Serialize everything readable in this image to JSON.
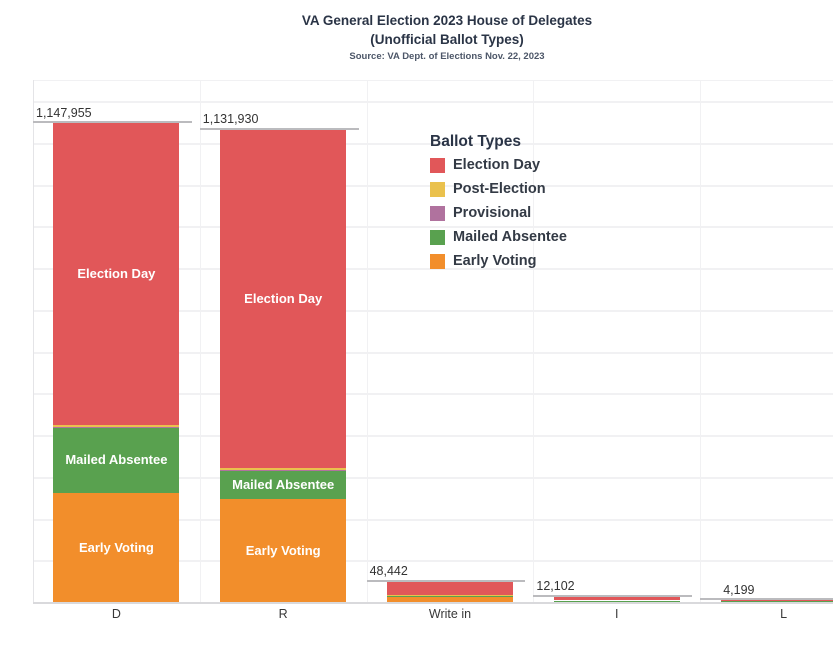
{
  "header": {
    "title": "VA General Election 2023 House of Delegates",
    "subtitle": "(Unofficial Ballot Types)",
    "source": "Source: VA Dept. of Elections Nov. 22, 2023"
  },
  "legend": {
    "title": "Ballot Types"
  },
  "chart_data": {
    "type": "bar",
    "stacked": true,
    "title": "VA General Election 2023 House of Delegates",
    "subtitle": "(Unofficial Ballot Types)",
    "source": "Source: VA Dept. of Elections Nov. 22, 2023",
    "legend_title": "Ballot Types",
    "legend_position": "inside-top-right",
    "grid": true,
    "gridline_interval": 100000,
    "ylim": [
      0,
      1250000
    ],
    "xlabel": "",
    "ylabel": "",
    "categories": [
      "D",
      "R",
      "Write in",
      "I",
      "L"
    ],
    "totals": [
      1147955,
      1131930,
      48442,
      12102,
      4199
    ],
    "total_labels": [
      "1,147,955",
      "1,131,930",
      "48,442",
      "12,102",
      "4,199"
    ],
    "series": [
      {
        "name": "Election Day",
        "color": "#e15759",
        "values": [
          722600,
          811100,
          31600,
          8400,
          2100
        ]
      },
      {
        "name": "Post-Election",
        "color": "#eac14d",
        "values": [
          4800,
          4800,
          300,
          100,
          50
        ]
      },
      {
        "name": "Provisional",
        "color": "#b0729e",
        "values": [
          1000,
          900,
          100,
          50,
          20
        ]
      },
      {
        "name": "Mailed Absentee",
        "color": "#59a14f",
        "values": [
          159300,
          68300,
          4800,
          500,
          200
        ]
      },
      {
        "name": "Early Voting",
        "color": "#f28e2b",
        "values": [
          260255,
          246830,
          11642,
          3052,
          1829
        ]
      }
    ]
  },
  "colors": {
    "election_day": "#e15759",
    "post_election": "#eac14d",
    "provisional": "#b0729e",
    "mailed_absentee": "#59a14f",
    "early_voting": "#f28e2b",
    "gridline": "#f1f1f3",
    "reference_line": "#bbbbbe",
    "title_text": "#2a3446"
  }
}
